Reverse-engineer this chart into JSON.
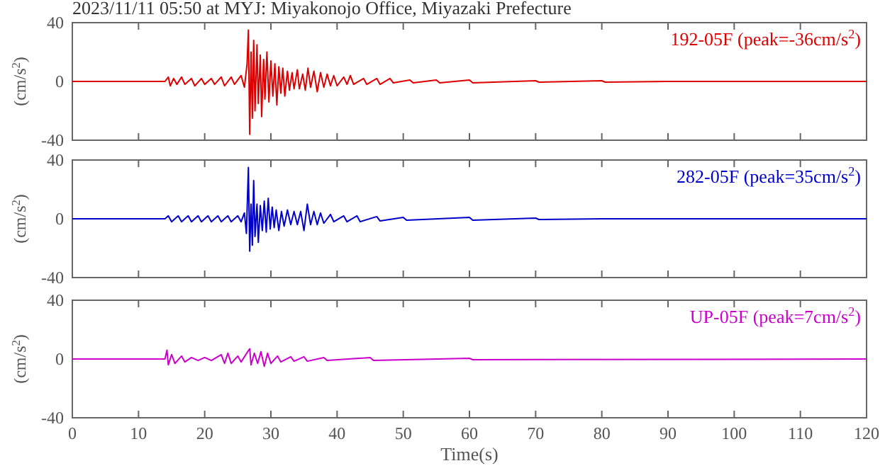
{
  "chart_data": [
    {
      "type": "line",
      "title": "2023/11/11 05:50 at MYJ: Miyakonojo Office, Miyazaki Prefecture",
      "ylabel": "(cm/s$^{2}$)",
      "xlim": [
        0,
        120
      ],
      "xticks": [
        0,
        10,
        20,
        30,
        40,
        50,
        60,
        70,
        80,
        90,
        100,
        110,
        120
      ],
      "ylim": [
        -40,
        40
      ],
      "yticks": [
        -40,
        0,
        40
      ],
      "tick_labels": "y",
      "legend": "top right",
      "marker": "none",
      "series": [
        {
          "name": "192-05F (peak=-36cm/s$^{2}$)",
          "color": "#dd0000",
          "x": [
            0,
            14,
            14.5,
            14.8,
            15.3,
            15.8,
            16.5,
            17,
            18,
            18.5,
            19.5,
            20,
            21,
            21.5,
            22.5,
            23,
            24,
            24.5,
            25.5,
            26,
            26.4,
            26.6,
            26.8,
            27,
            27.2,
            27.4,
            27.6,
            27.9,
            28.1,
            28.4,
            28.6,
            28.9,
            29.1,
            29.4,
            29.7,
            30,
            30.3,
            30.6,
            30.9,
            31.2,
            31.5,
            31.8,
            32.1,
            32.5,
            32.8,
            33.2,
            33.5,
            34,
            34.3,
            34.8,
            35.2,
            35.6,
            36,
            36.5,
            37,
            37.5,
            38,
            38.5,
            39,
            39.5,
            40,
            41,
            41.5,
            42,
            42.5,
            44,
            44.5,
            46,
            46.5,
            48,
            48.5,
            51,
            51.5,
            55,
            55.5,
            60,
            60.5,
            70,
            70.5,
            80,
            80.5,
            90,
            120
          ],
          "values": [
            0,
            0,
            3,
            -3,
            2,
            -2,
            3,
            -2,
            2,
            -3,
            2,
            -2,
            2,
            -2,
            3,
            -3,
            3,
            -2,
            4,
            -4,
            12,
            35,
            -36,
            20,
            -25,
            28,
            -20,
            25,
            -15,
            18,
            -24,
            15,
            -12,
            20,
            -14,
            14,
            -10,
            12,
            -16,
            10,
            -8,
            9,
            -10,
            7,
            -6,
            6,
            -5,
            8,
            -5,
            5,
            -6,
            9,
            -4,
            7,
            -7,
            6,
            -4,
            5,
            -3,
            4,
            -3,
            3,
            -2,
            4,
            -2,
            2,
            -2,
            2,
            -2,
            2,
            -1,
            1,
            -1,
            1,
            -1,
            1,
            -1,
            0.5,
            -0.5,
            0.5,
            -0.5,
            0,
            0
          ]
        }
      ]
    },
    {
      "type": "line",
      "ylabel": "(cm/s$^{2}$)",
      "xlim": [
        0,
        120
      ],
      "xticks": [
        0,
        10,
        20,
        30,
        40,
        50,
        60,
        70,
        80,
        90,
        100,
        110,
        120
      ],
      "ylim": [
        -40,
        40
      ],
      "yticks": [
        -40,
        0,
        40
      ],
      "tick_labels": "y",
      "legend": "top right",
      "marker": "none",
      "series": [
        {
          "name": "282-05F (peak=35cm/s$^{2}$)",
          "color": "#0000cc",
          "x": [
            0,
            14,
            14.5,
            15,
            16,
            16.5,
            17.5,
            18,
            19,
            19.5,
            20.5,
            21,
            22,
            22.5,
            23.5,
            24,
            25,
            25.5,
            26,
            26.3,
            26.6,
            26.8,
            27,
            27.2,
            27.4,
            27.6,
            27.9,
            28.1,
            28.4,
            28.7,
            29,
            29.3,
            29.6,
            29.9,
            30.2,
            30.5,
            30.8,
            31.2,
            31.6,
            32,
            32.5,
            33,
            33.5,
            34,
            34.5,
            35,
            35.5,
            36,
            36.5,
            37,
            37.5,
            38,
            39,
            39.5,
            41,
            41.5,
            43,
            43.5,
            46,
            46.5,
            50,
            50.5,
            60,
            60.5,
            70,
            70.5,
            80,
            120
          ],
          "values": [
            0,
            0,
            2,
            -2,
            2,
            -2,
            2,
            -2,
            2,
            -2,
            2,
            -2,
            2,
            -2,
            2,
            -2,
            2,
            -2,
            4,
            -10,
            35,
            -22,
            10,
            -18,
            26,
            -12,
            10,
            -16,
            9,
            -8,
            12,
            -9,
            14,
            -7,
            8,
            -6,
            6,
            -8,
            5,
            -5,
            6,
            -4,
            5,
            -4,
            5,
            -8,
            10,
            -4,
            5,
            -4,
            4,
            -3,
            3,
            -2,
            2,
            -2,
            2,
            -2,
            1.5,
            -1.5,
            1,
            -1,
            1,
            -1,
            0.5,
            -0.5,
            0,
            0
          ]
        }
      ]
    },
    {
      "type": "line",
      "xlabel": "Time(s)",
      "ylabel": "(cm/s$^{2}$)",
      "xlim": [
        0,
        120
      ],
      "xticks": [
        0,
        10,
        20,
        30,
        40,
        50,
        60,
        70,
        80,
        90,
        100,
        110,
        120
      ],
      "ylim": [
        -40,
        40
      ],
      "yticks": [
        -40,
        0,
        40
      ],
      "legend": "top right",
      "marker": "none",
      "series": [
        {
          "name": "UP-05F (peak=7cm/s$^{2}$)",
          "color": "#cc00cc",
          "x": [
            0,
            14,
            14.3,
            14.5,
            15,
            15.5,
            16.5,
            17,
            18,
            19,
            20,
            21,
            22.5,
            23,
            23.5,
            24,
            25,
            25.5,
            26.5,
            26.8,
            27,
            27.5,
            28,
            28.5,
            29,
            29.5,
            30,
            31,
            31.5,
            33,
            33.5,
            35,
            35.5,
            38,
            38.5,
            45,
            45.5,
            60,
            60.5,
            120
          ],
          "values": [
            0,
            0,
            6,
            -4,
            3,
            -3,
            2,
            -2,
            1,
            -1,
            1,
            -1,
            3,
            -3,
            4,
            -3,
            2,
            -2,
            5,
            7,
            -4,
            4,
            -3,
            5,
            -5,
            4,
            -3,
            2,
            -2,
            1.5,
            -1.5,
            1.5,
            -1.5,
            1,
            -1,
            1,
            -1,
            0.5,
            -0.5,
            0
          ]
        }
      ]
    }
  ]
}
